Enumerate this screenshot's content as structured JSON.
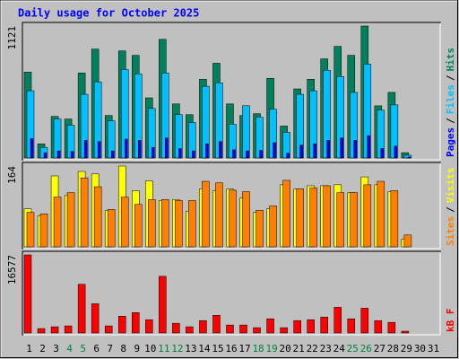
{
  "chart_data": [
    {
      "type": "bar",
      "title": "Daily usage for October 2025",
      "legend_separator": "/",
      "ylim": [
        0,
        1121
      ],
      "yticks": [
        1121
      ],
      "series": [
        {
          "name": "Hits",
          "color": "#00805c",
          "values": [
            730,
            120,
            353,
            331,
            722,
            925,
            361,
            910,
            872,
            511,
            1008,
            459,
            368,
            669,
            805,
            459,
            361,
            376,
            677,
            271,
            587,
            669,
            842,
            948,
            872,
            1121,
            443,
            557,
            45,
            0,
            0
          ]
        },
        {
          "name": "Files",
          "color": "#00c0ff",
          "values": [
            571,
            90,
            331,
            278,
            541,
            647,
            316,
            752,
            714,
            421,
            722,
            368,
            301,
            609,
            639,
            286,
            444,
            346,
            414,
            218,
            541,
            571,
            745,
            692,
            557,
            797,
            406,
            451,
            23,
            0,
            0
          ]
        },
        {
          "name": "Pages",
          "color": "#0000ff",
          "values": [
            165,
            45,
            60,
            55,
            150,
            140,
            60,
            160,
            150,
            90,
            170,
            80,
            60,
            120,
            140,
            70,
            60,
            65,
            130,
            40,
            110,
            120,
            150,
            170,
            150,
            190,
            80,
            100,
            8,
            0,
            0
          ]
        }
      ]
    },
    {
      "type": "bar",
      "legend_separator": "/",
      "ylim": [
        0,
        164
      ],
      "yticks": [
        164
      ],
      "series": [
        {
          "name": "Visits",
          "color": "#ffff00",
          "values": [
            77,
            63,
            144,
            104,
            153,
            148,
            74,
            164,
            114,
            134,
            94,
            96,
            72,
            118,
            114,
            117,
            99,
            70,
            77,
            126,
            117,
            124,
            124,
            126,
            110,
            142,
            126,
            112,
            16,
            0,
            0
          ]
        },
        {
          "name": "Sites",
          "color": "#ff8000",
          "values": [
            70,
            67,
            101,
            110,
            140,
            122,
            76,
            101,
            86,
            96,
            96,
            94,
            94,
            133,
            130,
            115,
            112,
            74,
            83,
            135,
            118,
            120,
            124,
            110,
            110,
            126,
            133,
            114,
            24,
            0,
            0
          ]
        }
      ]
    },
    {
      "type": "bar",
      "ylim": [
        0,
        16577
      ],
      "yticks": [
        16577
      ],
      "categories": [
        "1",
        "2",
        "3",
        "4",
        "5",
        "6",
        "7",
        "8",
        "9",
        "10",
        "11",
        "12",
        "13",
        "14",
        "15",
        "16",
        "17",
        "18",
        "19",
        "20",
        "21",
        "22",
        "23",
        "24",
        "25",
        "26",
        "27",
        "28",
        "29",
        "30",
        "31"
      ],
      "category_colors": [
        "#000000",
        "#000000",
        "#000000",
        "#008040",
        "#008040",
        "#000000",
        "#000000",
        "#000000",
        "#000000",
        "#000000",
        "#008040",
        "#008040",
        "#000000",
        "#000000",
        "#000000",
        "#000000",
        "#000000",
        "#008040",
        "#008040",
        "#000000",
        "#000000",
        "#000000",
        "#000000",
        "#000000",
        "#008040",
        "#008040",
        "#000000",
        "#000000",
        "#000000",
        "#000000",
        "#000000"
      ],
      "series": [
        {
          "name": "kB F",
          "color": "#ff0000",
          "values": [
            16577,
            940,
            1316,
            1504,
            10340,
            6204,
            1504,
            3572,
            4324,
            2820,
            12032,
            2068,
            1316,
            2632,
            3760,
            1692,
            1692,
            1128,
            3008,
            1128,
            2632,
            2820,
            3384,
            5452,
            3008,
            5264,
            2632,
            2256,
            376,
            0,
            0
          ]
        }
      ]
    }
  ]
}
